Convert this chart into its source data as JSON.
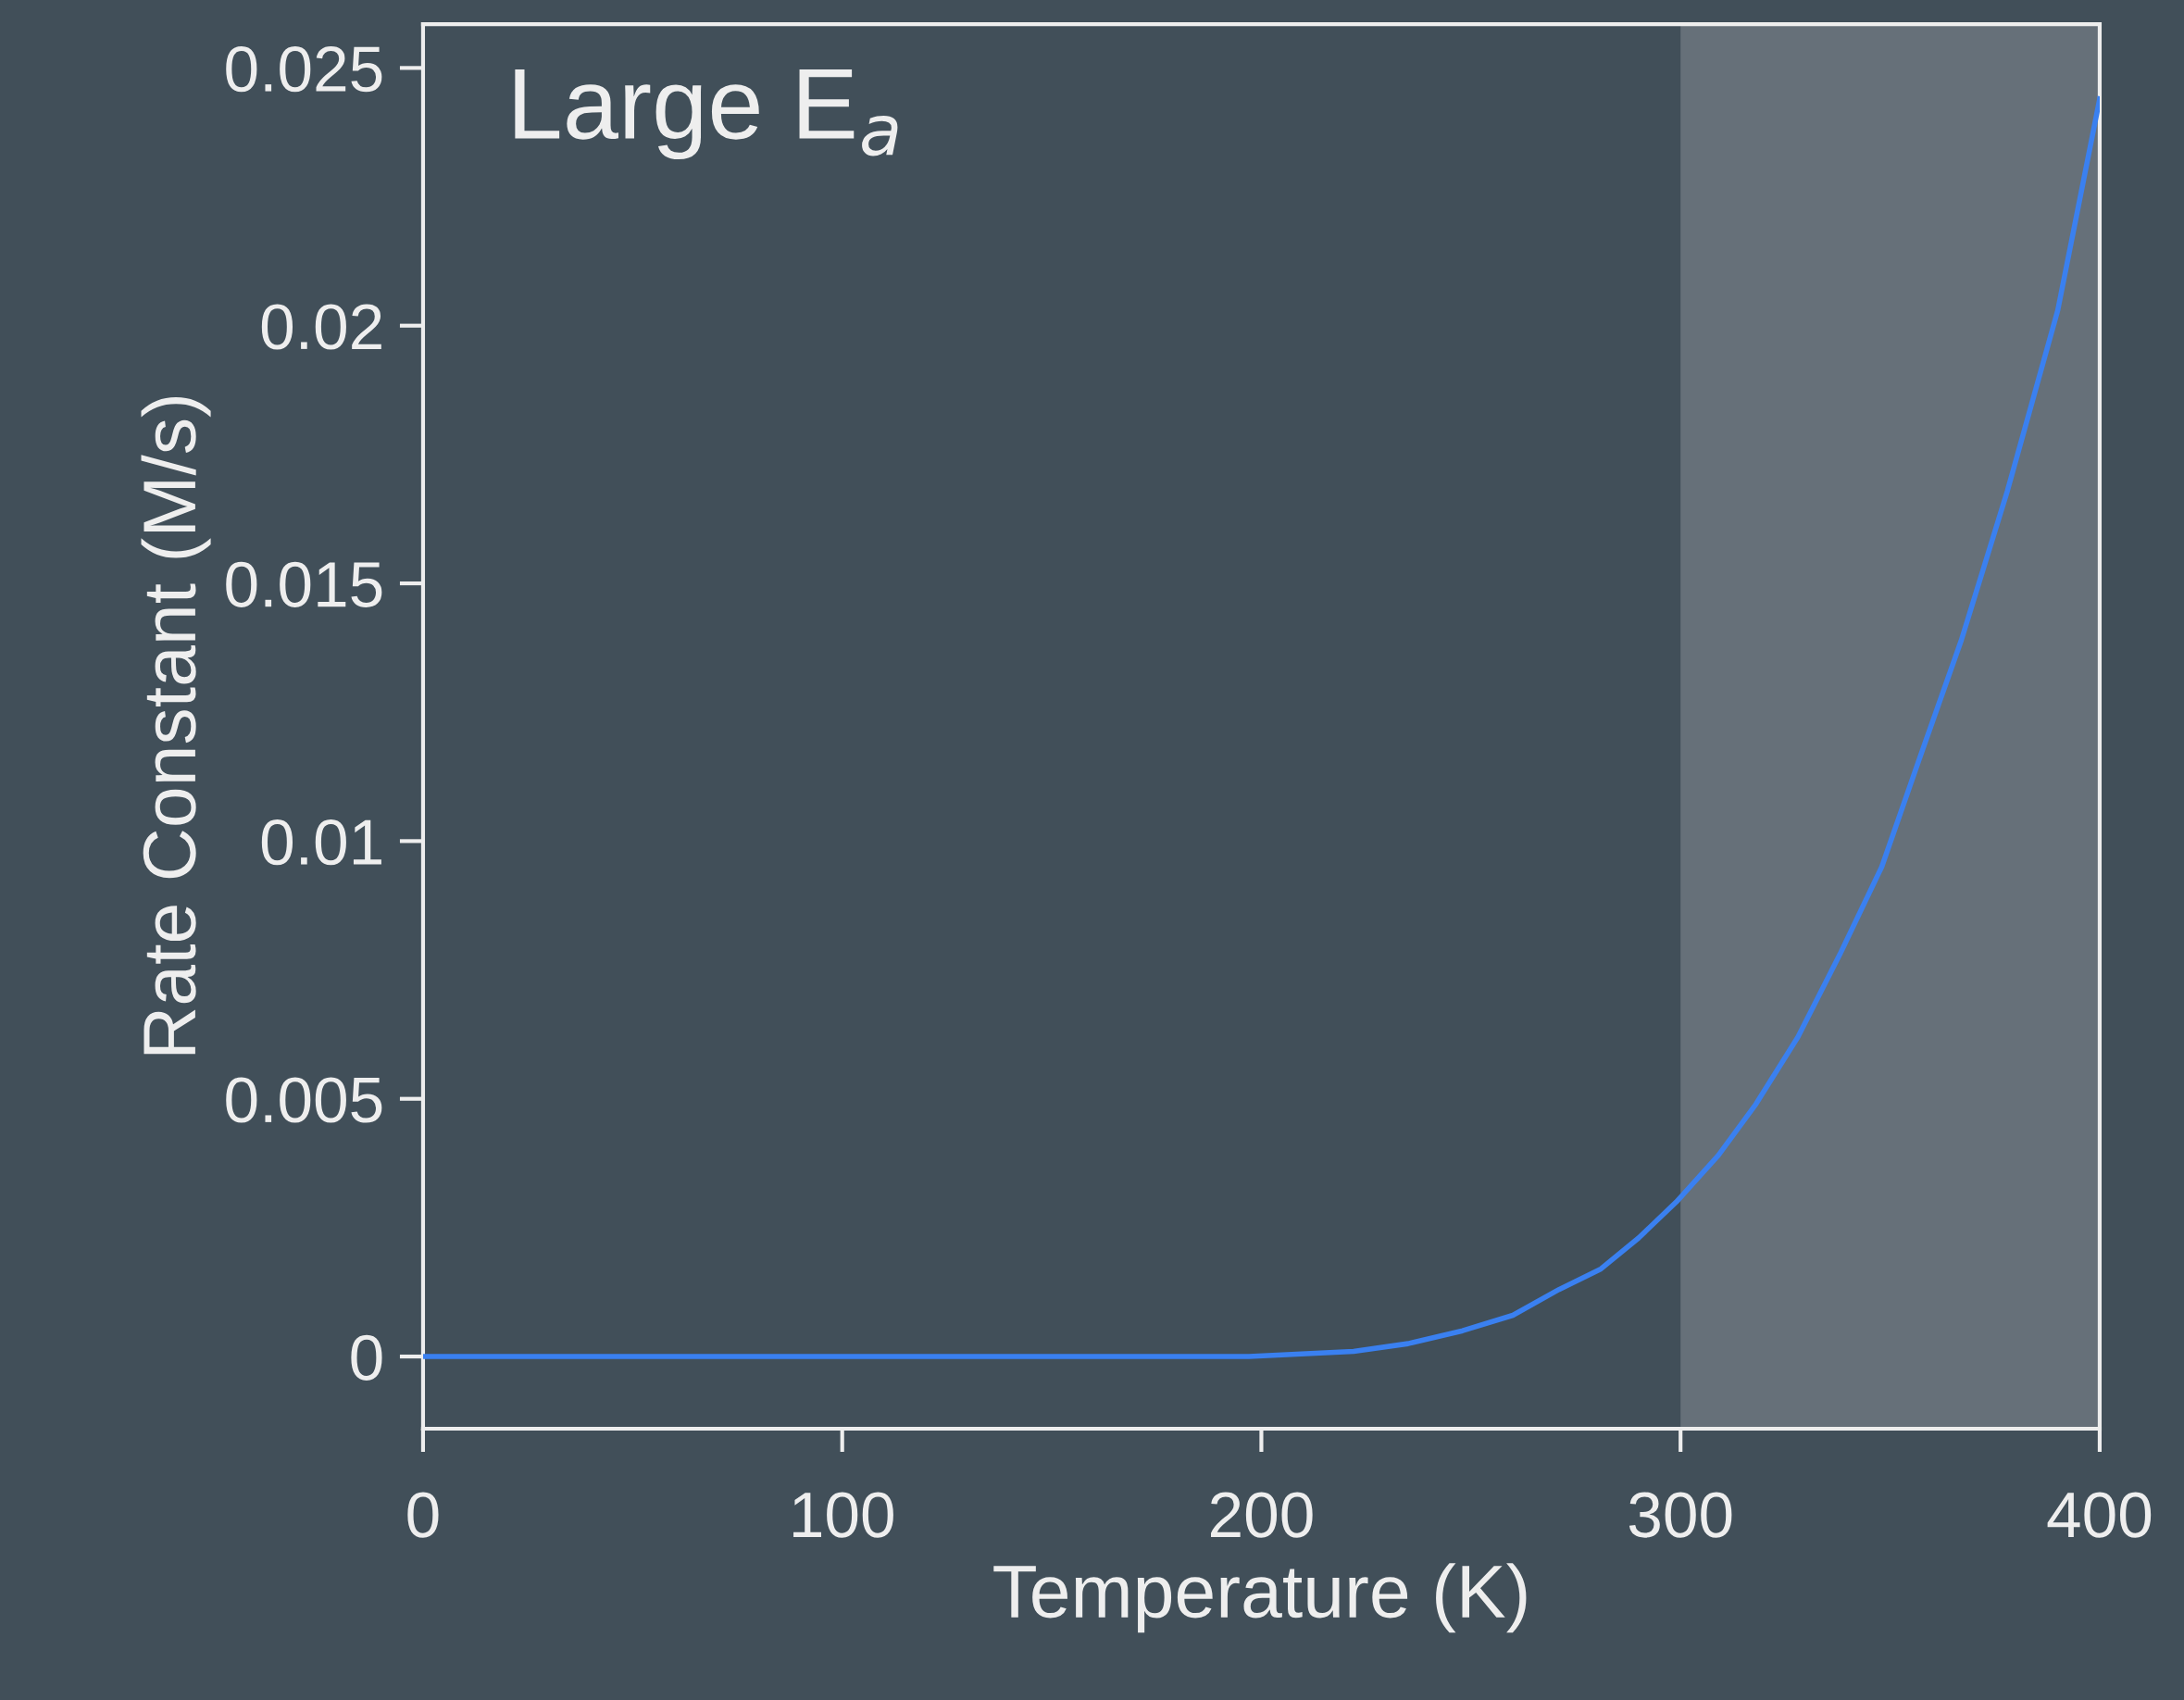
{
  "chart_data": {
    "type": "line",
    "xlabel": "Temperature (K)",
    "ylabel": "Rate Constant (M/s)",
    "annotations": [
      "Large E$_{a}$"
    ],
    "x": [
      0,
      100,
      197,
      222,
      235,
      248,
      260,
      271,
      281,
      290,
      299,
      309,
      318,
      328,
      338,
      348,
      357,
      367,
      378,
      390,
      400
    ],
    "series": [
      {
        "color": "#3a80f0",
        "values": [
          0,
          0,
          0,
          0.0001,
          0.00025,
          0.0005,
          0.0008,
          0.0013,
          0.0017,
          0.0023,
          0.003,
          0.0039,
          0.0049,
          0.0062,
          0.0078,
          0.0095,
          0.0116,
          0.0139,
          0.0168,
          0.0203,
          0.0244
        ]
      }
    ],
    "bands": [
      {
        "axis": "x",
        "from": 300,
        "to": 400,
        "color": "#667079"
      }
    ],
    "xlim": [
      0,
      400
    ],
    "ylim": [
      -0.0014,
      0.02585
    ],
    "xticks": [
      0,
      100,
      200,
      300,
      400
    ],
    "yticks": [
      0,
      0.005,
      0.01,
      0.015,
      0.02,
      0.025
    ],
    "grid": false,
    "legend": false,
    "marker": "none",
    "line_style": "solid"
  }
}
